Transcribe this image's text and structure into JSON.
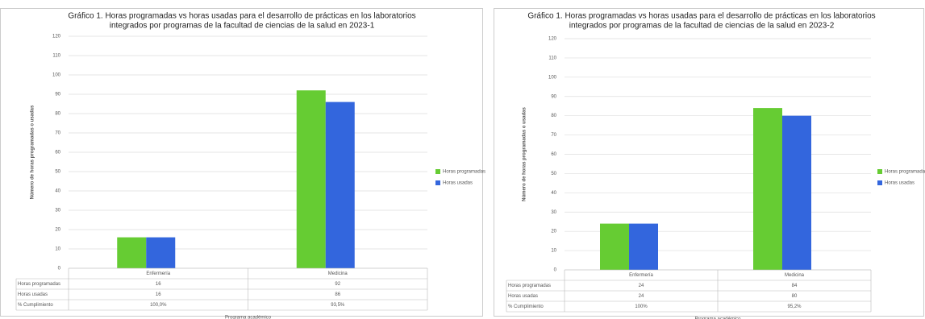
{
  "chart_data": [
    {
      "type": "bar",
      "title": [
        "Gráfico 1.   Horas programadas vs horas usadas para el desarrollo de prácticas en los laboratorios",
        "integrados por programas de la facultad de ciencias de la salud en 2023-1"
      ],
      "categories": [
        "Enfermería",
        "Medicina"
      ],
      "series": [
        {
          "name": "Horas programadas",
          "color": "#66cc33",
          "values": [
            16,
            92
          ]
        },
        {
          "name": "Horas usadas",
          "color": "#3366dd",
          "values": [
            16,
            86
          ]
        }
      ],
      "compliance": {
        "name": "% Cumplimiento",
        "values": [
          100,
          93.5
        ],
        "value_labels": [
          "100,0%",
          "93,5%"
        ]
      },
      "ylim": [
        0,
        120
      ],
      "yticks": [
        0,
        10,
        20,
        30,
        40,
        50,
        60,
        70,
        80,
        90,
        100,
        110,
        120
      ],
      "x_label": "Programa académico",
      "y_label": "Número de horas programadas o usadas",
      "grid": true,
      "legend": "right"
    },
    {
      "type": "bar",
      "title": [
        "Gráfico 1.   Horas programadas vs horas usadas para el desarrollo de prácticas en los laboratorios",
        "integrados por programas de la facultad de ciencias de la salud en 2023-2"
      ],
      "categories": [
        "Enfermería",
        "Medicina"
      ],
      "series": [
        {
          "name": "Horas programadas",
          "color": "#66cc33",
          "values": [
            24,
            84
          ]
        },
        {
          "name": "Horas usadas",
          "color": "#3366dd",
          "values": [
            24,
            80
          ]
        }
      ],
      "compliance": {
        "name": "% Cumplimiento",
        "values": [
          100,
          95.2
        ],
        "value_labels": [
          "100%",
          "95,2%"
        ]
      },
      "ylim": [
        0,
        120
      ],
      "yticks": [
        0,
        10,
        20,
        30,
        40,
        50,
        60,
        70,
        80,
        90,
        100,
        110,
        120
      ],
      "x_label": "Programa académico",
      "y_label": "Número de horas programadas o usadas",
      "grid": true,
      "legend": "right"
    }
  ]
}
